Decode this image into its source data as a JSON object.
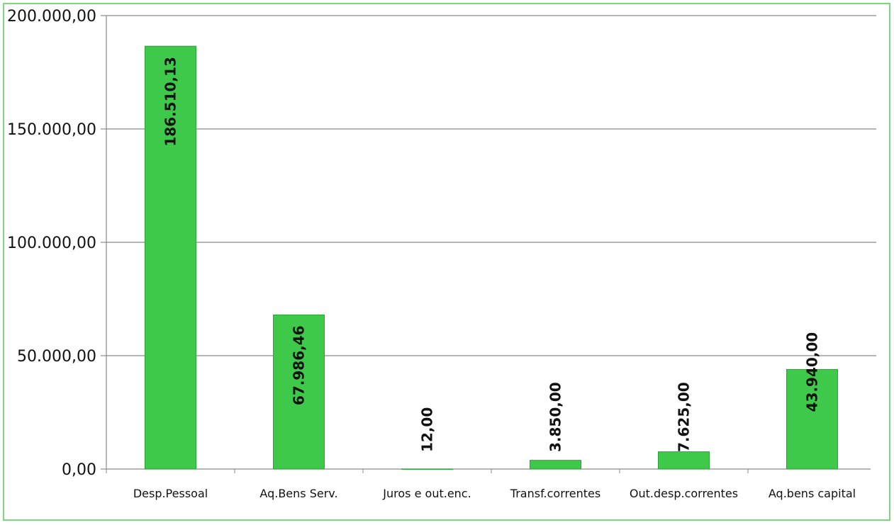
{
  "chart_data": {
    "type": "bar",
    "categories": [
      "Desp.Pessoal",
      "Aq.Bens Serv.",
      "Juros e out.enc.",
      "Transf.correntes",
      "Out.desp.correntes",
      "Aq.bens capital"
    ],
    "values": [
      186510.13,
      67986.46,
      12.0,
      3850.0,
      7625.0,
      43940.0
    ],
    "data_labels": [
      "186.510,13",
      "67.986,46",
      "12,00",
      "3.850,00",
      "7.625,00",
      "43.940,00"
    ],
    "y_ticks": [
      0,
      50000,
      100000,
      150000,
      200000
    ],
    "y_tick_labels": [
      "0,00",
      "50.000,00",
      "100.000,00",
      "150.000,00",
      "200.000,00"
    ],
    "ylim": [
      0,
      200000
    ],
    "grid": true,
    "legend": false
  },
  "colors": {
    "bar": "#3ec94a",
    "bar_edge": "#2aa536",
    "grid": "#8a8a8a",
    "frame": "#7fd67f"
  }
}
